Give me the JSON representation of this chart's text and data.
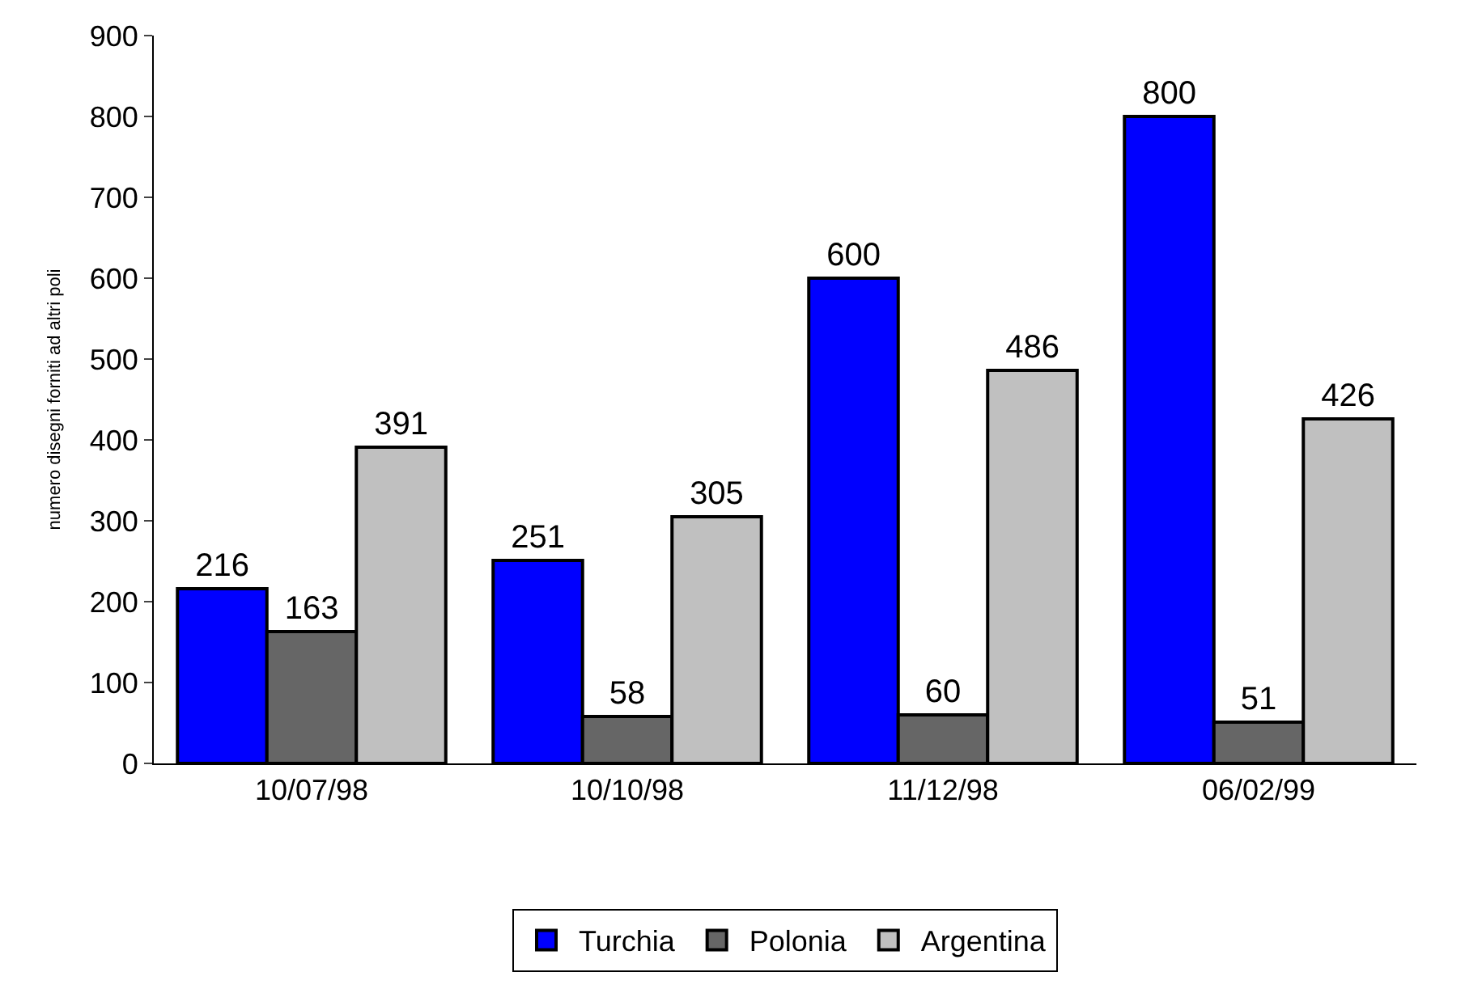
{
  "chart_data": {
    "type": "bar",
    "ylabel": "numero disegni forniti ad altri poli",
    "categories": [
      "10/07/98",
      "10/10/98",
      "11/12/98",
      "06/02/99"
    ],
    "series": [
      {
        "name": "Turchia",
        "color": "#0000ff",
        "values": [
          216,
          251,
          600,
          800
        ]
      },
      {
        "name": "Polonia",
        "color": "#666666",
        "values": [
          163,
          58,
          60,
          51
        ]
      },
      {
        "name": "Argentina",
        "color": "#c0c0c0",
        "values": [
          391,
          305,
          486,
          426
        ]
      }
    ],
    "ylim": [
      0,
      900
    ],
    "yticks": [
      0,
      100,
      200,
      300,
      400,
      500,
      600,
      700,
      800,
      900
    ],
    "data_labels": true,
    "grid": false,
    "legend": "bottom"
  }
}
